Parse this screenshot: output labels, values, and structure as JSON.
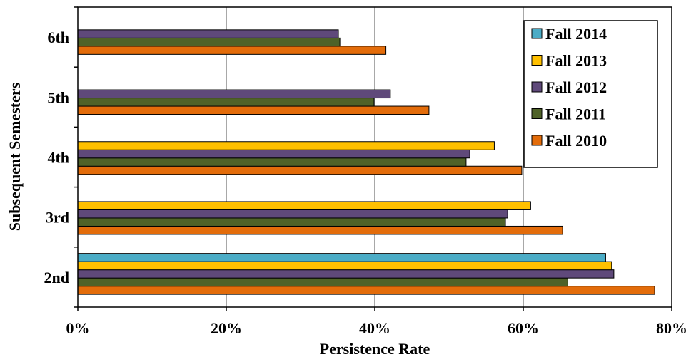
{
  "chart_data": {
    "type": "bar",
    "orientation": "horizontal",
    "title": "",
    "xlabel": "Persistence Rate",
    "ylabel": "Subsequent Semesters",
    "xlim": [
      0,
      80
    ],
    "x_ticks": [
      "0%",
      "20%",
      "40%",
      "60%",
      "80%"
    ],
    "categories": [
      "2nd",
      "3rd",
      "4th",
      "5th",
      "6th"
    ],
    "grid": "vertical gridlines",
    "legend_position": "top-right",
    "series": [
      {
        "name": "Fall 2010",
        "color": "#E36C0A",
        "values": [
          77.7,
          65.3,
          59.8,
          47.3,
          41.5
        ]
      },
      {
        "name": "Fall 2011",
        "color": "#4F6228",
        "values": [
          66.0,
          57.6,
          52.3,
          39.9,
          35.3
        ]
      },
      {
        "name": "Fall 2012",
        "color": "#5F497A",
        "values": [
          72.2,
          57.9,
          52.8,
          42.1,
          35.1
        ]
      },
      {
        "name": "Fall 2013",
        "color": "#FFC000",
        "values": [
          71.9,
          61.0,
          56.1,
          null,
          null
        ]
      },
      {
        "name": "Fall 2014",
        "color": "#4BACC6",
        "values": [
          71.1,
          null,
          null,
          null,
          null
        ]
      }
    ],
    "legend_order": [
      "Fall 2014",
      "Fall 2013",
      "Fall 2012",
      "Fall 2011",
      "Fall 2010"
    ]
  }
}
